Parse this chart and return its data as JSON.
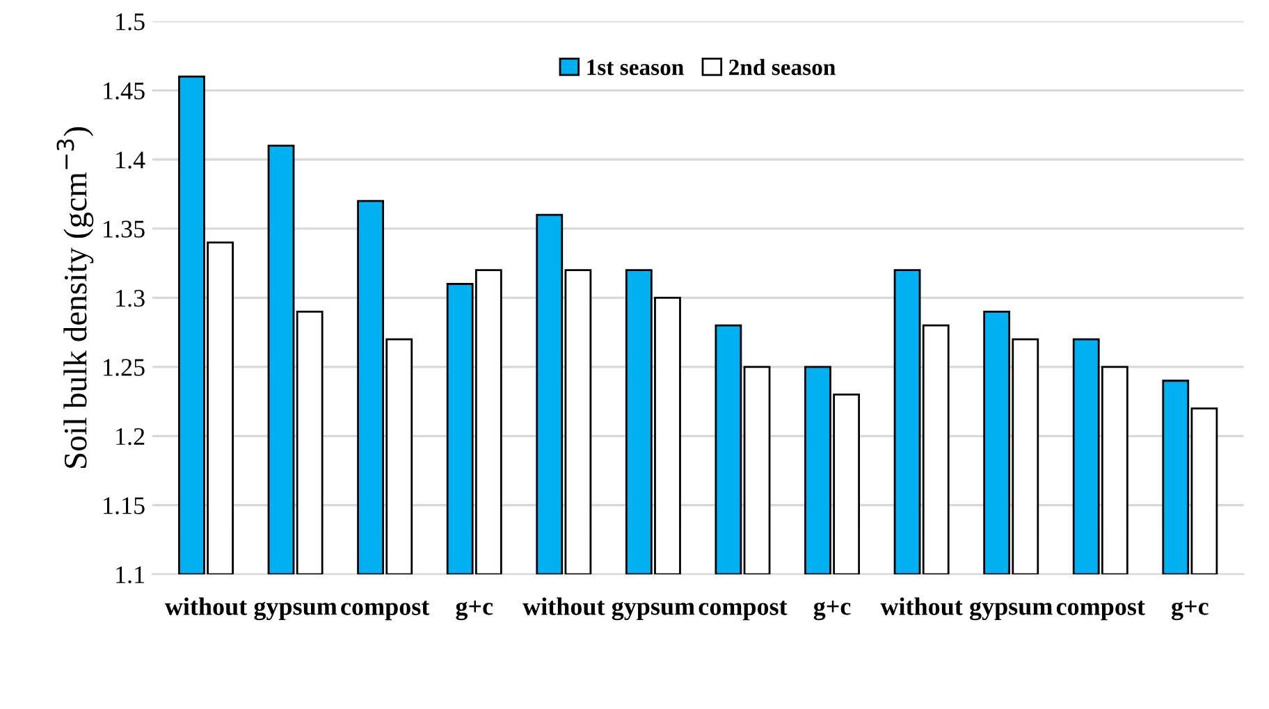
{
  "chart_data": {
    "type": "bar",
    "ylabel": "Soil bulk density (gcm$^{−3}$)",
    "categories": [
      "without",
      "gypsum",
      "compost",
      "g+c",
      "without",
      "gypsum",
      "compost",
      "g+c",
      "without",
      "gypsum",
      "compost",
      "g+c"
    ],
    "series": [
      {
        "name": "1st season",
        "color": "#00b0f0",
        "values": [
          1.46,
          1.41,
          1.37,
          1.31,
          1.36,
          1.32,
          1.28,
          1.25,
          1.32,
          1.29,
          1.27,
          1.24
        ]
      },
      {
        "name": "2nd season",
        "color": "#ffffff",
        "values": [
          1.34,
          1.29,
          1.27,
          1.32,
          1.32,
          1.3,
          1.25,
          1.23,
          1.28,
          1.27,
          1.25,
          1.22
        ]
      }
    ],
    "ylim": [
      1.1,
      1.5
    ],
    "yticks": [
      1.1,
      1.15,
      1.2,
      1.25,
      1.3,
      1.35,
      1.4,
      1.45,
      1.5
    ],
    "grid": "y",
    "legend": "top"
  }
}
